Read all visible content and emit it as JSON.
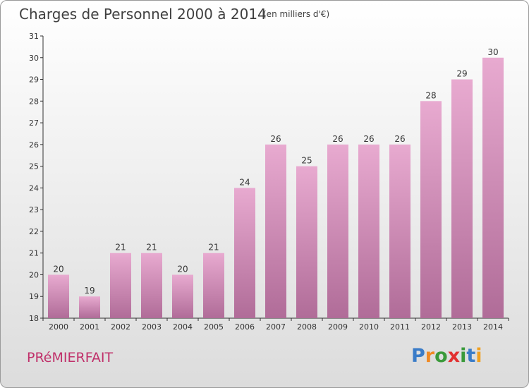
{
  "header": {
    "title": "Charges de Personnel 2000 à 2014",
    "subtitle": "(en milliers d'€)"
  },
  "footer": {
    "commune": "PRéMIERFAIT",
    "brand_letters": [
      "P",
      "r",
      "o",
      "x",
      "i",
      "t",
      "i"
    ]
  },
  "colors": {
    "bar_top": "#e8aad0",
    "bar_bottom": "#b06c98",
    "brand": [
      "#3a7cc8",
      "#f08a24",
      "#3a9a3a",
      "#e23030",
      "#3a9a3a",
      "#3a7cc8",
      "#f0a020"
    ]
  },
  "chart_data": {
    "type": "bar",
    "title": "Charges de Personnel 2000 à 2014",
    "subtitle": "(en milliers d'€)",
    "categories": [
      "2000",
      "2001",
      "2002",
      "2003",
      "2004",
      "2005",
      "2006",
      "2007",
      "2008",
      "2009",
      "2010",
      "2011",
      "2012",
      "2013",
      "2014"
    ],
    "values": [
      20,
      19,
      21,
      21,
      20,
      21,
      24,
      26,
      25,
      26,
      26,
      26,
      28,
      29,
      30
    ],
    "data_labels": [
      "20",
      "19",
      "21",
      "21",
      "20",
      "21",
      "24",
      "26",
      "25",
      "26",
      "26",
      "26",
      "28",
      "29",
      "30"
    ],
    "ylim": [
      18,
      31
    ],
    "yticks": [
      "18",
      "19",
      "20",
      "21",
      "22",
      "23",
      "24",
      "25",
      "26",
      "27",
      "28",
      "29",
      "30",
      "31"
    ],
    "grid": false,
    "legend": "none"
  }
}
